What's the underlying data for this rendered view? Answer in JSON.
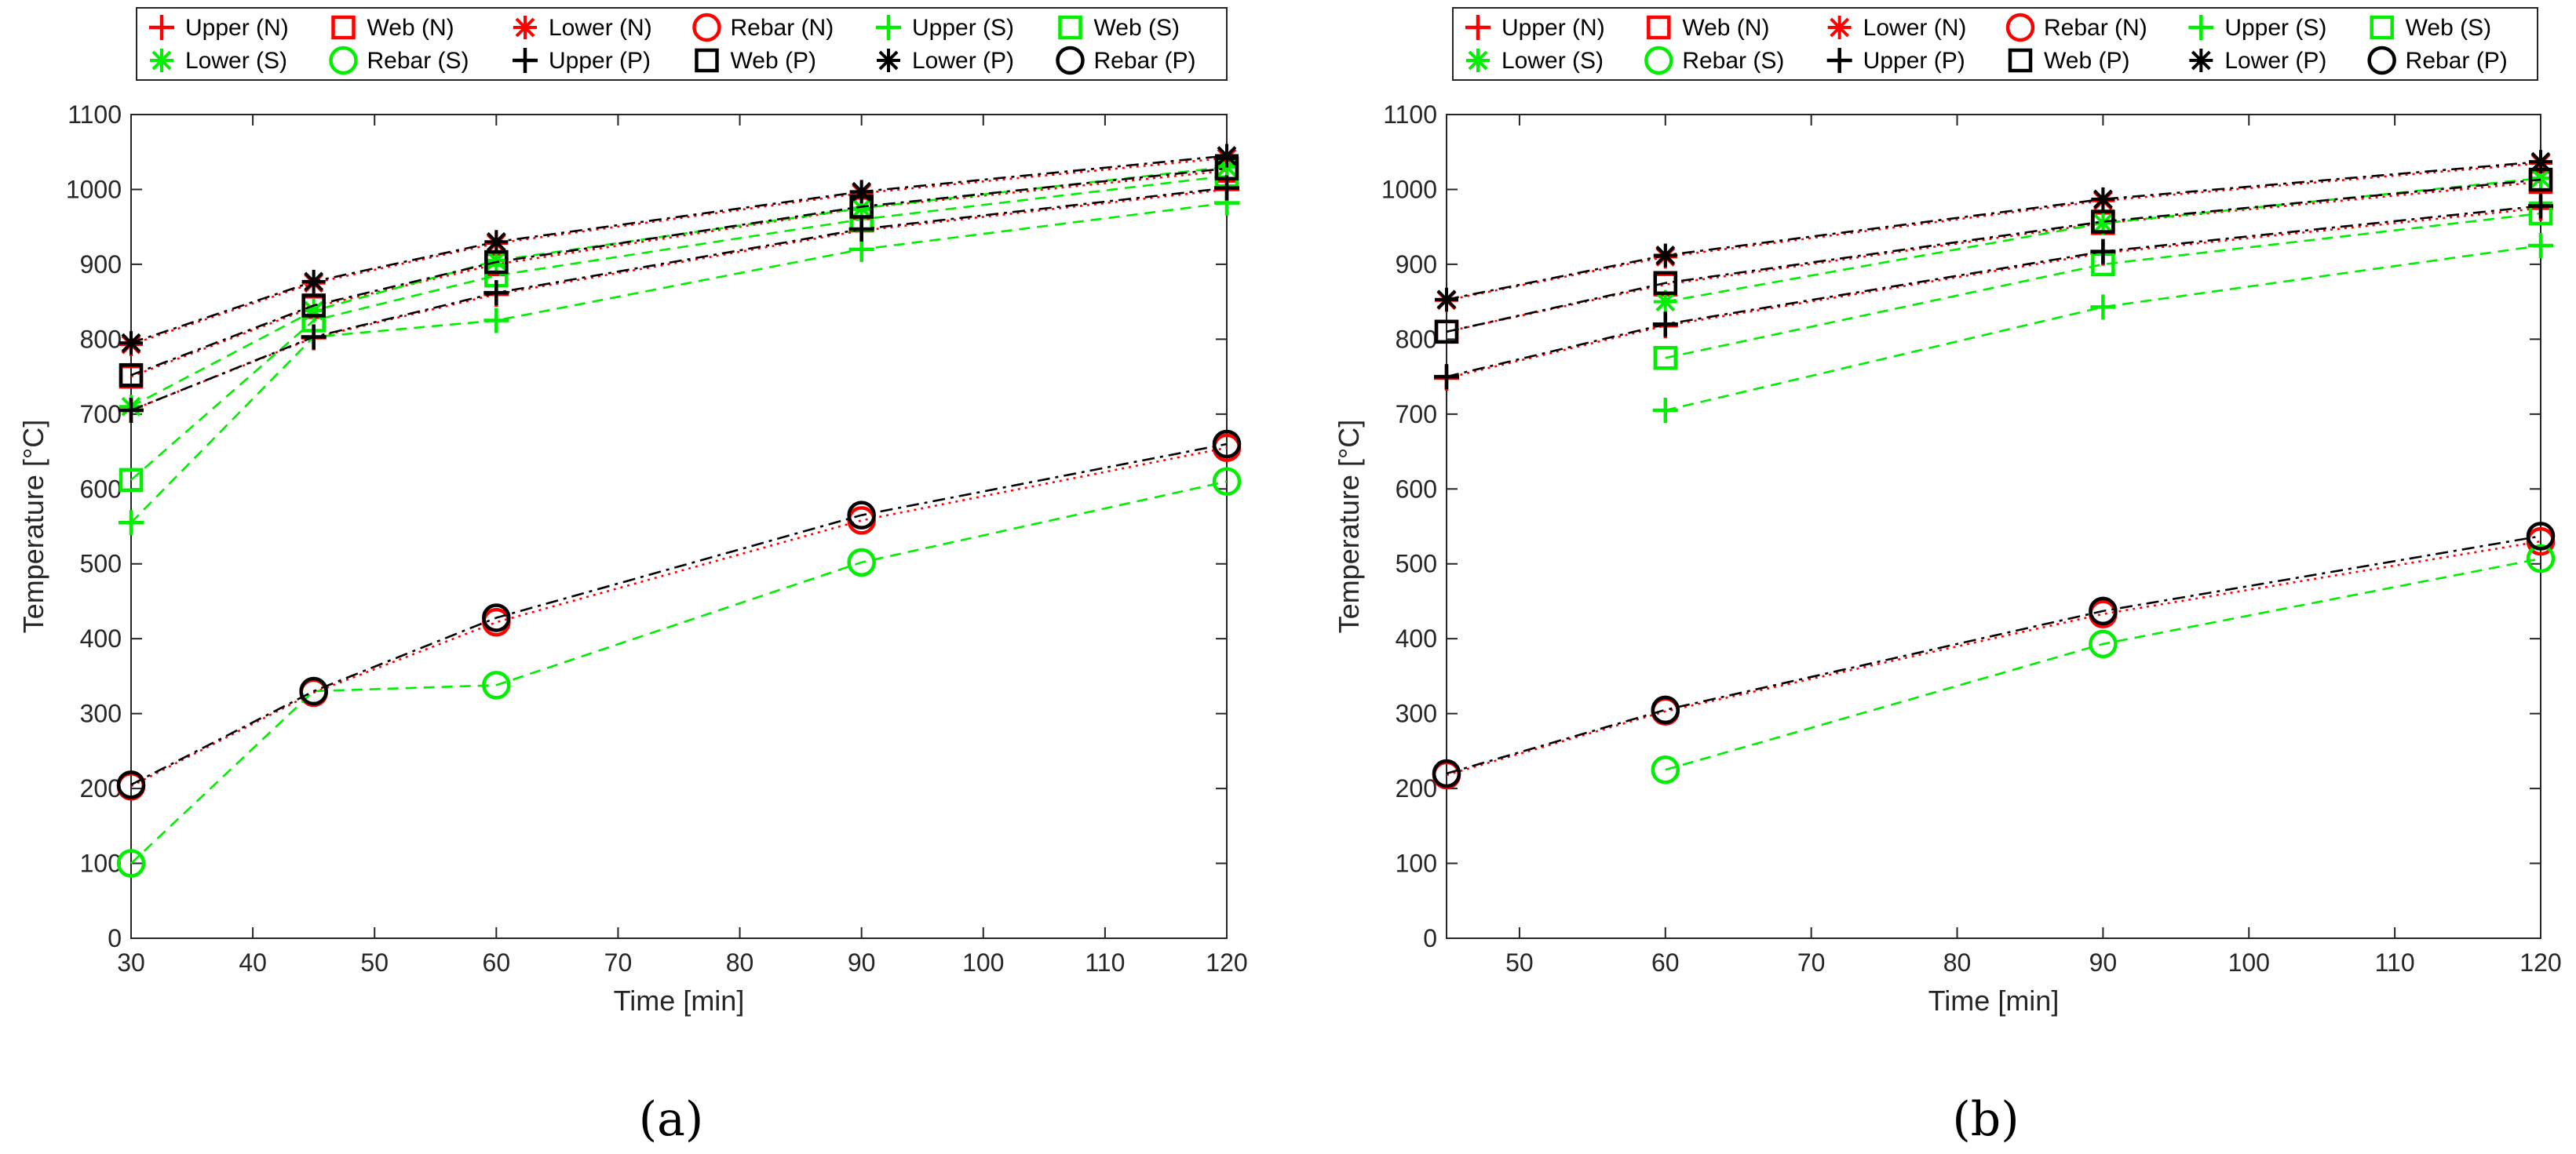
{
  "chart_data": [
    {
      "type": "line",
      "panel_label": "(a)",
      "xlabel": "Time [min]",
      "ylabel": "Temperature [°C]",
      "xlim": [
        30,
        120
      ],
      "ylim": [
        0,
        1100
      ],
      "xticks": [
        30,
        40,
        50,
        60,
        70,
        80,
        90,
        100,
        110,
        120
      ],
      "yticks": [
        0,
        100,
        200,
        300,
        400,
        500,
        600,
        700,
        800,
        900,
        1000,
        1100
      ],
      "grid": false,
      "legend": "top",
      "series": [
        {
          "name": "Upper (N)",
          "color": "#ff0000",
          "marker": "plus",
          "linestyle": "dotted",
          "x": [
            30,
            45,
            60,
            90,
            120
          ],
          "y": [
            705,
            802,
            860,
            945,
            1000
          ]
        },
        {
          "name": "Web (N)",
          "color": "#ff0000",
          "marker": "square",
          "linestyle": "dotted",
          "x": [
            30,
            45,
            60,
            90,
            120
          ],
          "y": [
            750,
            843,
            900,
            975,
            1025
          ]
        },
        {
          "name": "Lower (N)",
          "color": "#ff0000",
          "marker": "asterisk",
          "linestyle": "dotted",
          "x": [
            30,
            45,
            60,
            90,
            120
          ],
          "y": [
            793,
            875,
            928,
            995,
            1042
          ]
        },
        {
          "name": "Rebar (N)",
          "color": "#ff0000",
          "marker": "circle",
          "linestyle": "dotted",
          "x": [
            30,
            45,
            60,
            90,
            120
          ],
          "y": [
            203,
            328,
            422,
            558,
            655
          ]
        },
        {
          "name": "Upper (S)",
          "color": "#00ee00",
          "marker": "plus",
          "linestyle": "dashed",
          "x": [
            30,
            45,
            60,
            90,
            120
          ],
          "y": [
            555,
            803,
            825,
            920,
            982
          ]
        },
        {
          "name": "Web (S)",
          "color": "#00ee00",
          "marker": "square",
          "linestyle": "dashed",
          "x": [
            30,
            45,
            60,
            90,
            120
          ],
          "y": [
            612,
            825,
            885,
            960,
            1018
          ]
        },
        {
          "name": "Lower (S)",
          "color": "#00ee00",
          "marker": "asterisk",
          "linestyle": "dashed",
          "x": [
            30,
            45,
            60,
            90,
            120
          ],
          "y": [
            710,
            838,
            905,
            975,
            1030
          ]
        },
        {
          "name": "Rebar (S)",
          "color": "#00ee00",
          "marker": "circle",
          "linestyle": "dashed",
          "x": [
            30,
            45,
            60,
            90,
            120
          ],
          "y": [
            100,
            330,
            338,
            502,
            610
          ]
        },
        {
          "name": "Upper (P)",
          "color": "#000000",
          "marker": "plus",
          "linestyle": "dashdot",
          "x": [
            30,
            45,
            60,
            90,
            120
          ],
          "y": [
            705,
            803,
            862,
            947,
            1002
          ]
        },
        {
          "name": "Web (P)",
          "color": "#000000",
          "marker": "square",
          "linestyle": "dashdot",
          "x": [
            30,
            45,
            60,
            90,
            120
          ],
          "y": [
            752,
            845,
            903,
            977,
            1028
          ]
        },
        {
          "name": "Lower (P)",
          "color": "#000000",
          "marker": "asterisk",
          "linestyle": "dashdot",
          "x": [
            30,
            45,
            60,
            90,
            120
          ],
          "y": [
            795,
            877,
            930,
            997,
            1045
          ]
        },
        {
          "name": "Rebar (P)",
          "color": "#000000",
          "marker": "circle",
          "linestyle": "dashdot",
          "x": [
            30,
            45,
            60,
            90,
            120
          ],
          "y": [
            205,
            330,
            428,
            565,
            660
          ]
        }
      ]
    },
    {
      "type": "line",
      "panel_label": "(b)",
      "xlabel": "Time [min]",
      "ylabel": "Temperature [°C]",
      "xlim": [
        45,
        120
      ],
      "ylim": [
        0,
        1100
      ],
      "xticks": [
        50,
        60,
        70,
        80,
        90,
        100,
        110,
        120
      ],
      "yticks": [
        0,
        100,
        200,
        300,
        400,
        500,
        600,
        700,
        800,
        900,
        1000,
        1100
      ],
      "grid": false,
      "legend": "top",
      "series": [
        {
          "name": "Upper (N)",
          "color": "#ff0000",
          "marker": "plus",
          "linestyle": "dotted",
          "x": [
            45,
            60,
            90,
            120
          ],
          "y": [
            748,
            818,
            915,
            975
          ]
        },
        {
          "name": "Web (N)",
          "color": "#ff0000",
          "marker": "square",
          "linestyle": "dotted",
          "x": [
            45,
            60,
            90,
            120
          ],
          "y": [
            810,
            873,
            955,
            1010
          ]
        },
        {
          "name": "Lower (N)",
          "color": "#ff0000",
          "marker": "asterisk",
          "linestyle": "dotted",
          "x": [
            45,
            60,
            90,
            120
          ],
          "y": [
            852,
            910,
            985,
            1035
          ]
        },
        {
          "name": "Rebar (N)",
          "color": "#ff0000",
          "marker": "circle",
          "linestyle": "dotted",
          "x": [
            45,
            60,
            90,
            120
          ],
          "y": [
            218,
            303,
            433,
            530
          ]
        },
        {
          "name": "Upper (S)",
          "color": "#00ee00",
          "marker": "plus",
          "linestyle": "dashed",
          "x": [
            60,
            90,
            120
          ],
          "y": [
            705,
            843,
            925
          ]
        },
        {
          "name": "Web (S)",
          "color": "#00ee00",
          "marker": "square",
          "linestyle": "dashed",
          "x": [
            60,
            90,
            120
          ],
          "y": [
            775,
            900,
            968
          ]
        },
        {
          "name": "Lower (S)",
          "color": "#00ee00",
          "marker": "asterisk",
          "linestyle": "dashed",
          "x": [
            60,
            90,
            120
          ],
          "y": [
            850,
            955,
            1015
          ]
        },
        {
          "name": "Rebar (S)",
          "color": "#00ee00",
          "marker": "circle",
          "linestyle": "dashed",
          "x": [
            60,
            90,
            120
          ],
          "y": [
            225,
            393,
            507
          ]
        },
        {
          "name": "Upper (P)",
          "color": "#000000",
          "marker": "plus",
          "linestyle": "dashdot",
          "x": [
            45,
            60,
            90,
            120
          ],
          "y": [
            750,
            820,
            917,
            978
          ]
        },
        {
          "name": "Web (P)",
          "color": "#000000",
          "marker": "square",
          "linestyle": "dashdot",
          "x": [
            45,
            60,
            90,
            120
          ],
          "y": [
            810,
            875,
            957,
            1013
          ]
        },
        {
          "name": "Lower (P)",
          "color": "#000000",
          "marker": "asterisk",
          "linestyle": "dashdot",
          "x": [
            45,
            60,
            90,
            120
          ],
          "y": [
            853,
            912,
            987,
            1037
          ]
        },
        {
          "name": "Rebar (P)",
          "color": "#000000",
          "marker": "circle",
          "linestyle": "dashdot",
          "x": [
            45,
            60,
            90,
            120
          ],
          "y": [
            220,
            305,
            437,
            537
          ]
        }
      ]
    }
  ]
}
